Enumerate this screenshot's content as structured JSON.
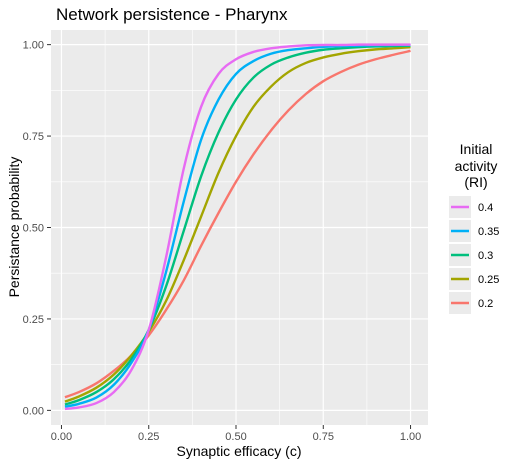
{
  "chart_data": {
    "type": "line",
    "title": "Network persistence - Pharynx",
    "xlabel": "Synaptic efficacy (c)",
    "ylabel": "Persistance probability",
    "xlim": [
      -0.03,
      1.05
    ],
    "ylim": [
      -0.04,
      1.04
    ],
    "x_ticks": [
      "0.00",
      "0.25",
      "0.50",
      "0.75",
      "1.00"
    ],
    "y_ticks": [
      "0.00",
      "0.25",
      "0.50",
      "0.75",
      "1.00"
    ],
    "grid": true,
    "legend": {
      "title_lines": [
        "Initial",
        "activity",
        "(RI)"
      ],
      "placement": "right"
    },
    "series": [
      {
        "name": "0.4",
        "color": "#E76BF3",
        "x": [
          0.01,
          0.05,
          0.1,
          0.15,
          0.2,
          0.25,
          0.3,
          0.35,
          0.4,
          0.45,
          0.5,
          0.55,
          0.6,
          0.65,
          0.7,
          0.75,
          0.8,
          0.85,
          0.9,
          0.95,
          1.0
        ],
        "y": [
          0.004,
          0.008,
          0.02,
          0.05,
          0.11,
          0.22,
          0.42,
          0.66,
          0.83,
          0.92,
          0.96,
          0.98,
          0.99,
          0.995,
          0.998,
          0.999,
          0.999,
          1.0,
          1.0,
          1.0,
          1.0
        ]
      },
      {
        "name": "0.35",
        "color": "#00B0F6",
        "x": [
          0.01,
          0.05,
          0.1,
          0.15,
          0.2,
          0.25,
          0.3,
          0.35,
          0.4,
          0.45,
          0.5,
          0.55,
          0.6,
          0.65,
          0.7,
          0.75,
          0.8,
          0.85,
          0.9,
          0.95,
          1.0
        ],
        "y": [
          0.01,
          0.018,
          0.035,
          0.07,
          0.13,
          0.22,
          0.38,
          0.57,
          0.74,
          0.85,
          0.92,
          0.955,
          0.975,
          0.985,
          0.99,
          0.994,
          0.996,
          0.997,
          0.998,
          0.999,
          0.999
        ]
      },
      {
        "name": "0.3",
        "color": "#00BF7D",
        "x": [
          0.01,
          0.05,
          0.1,
          0.15,
          0.2,
          0.25,
          0.3,
          0.35,
          0.4,
          0.45,
          0.5,
          0.55,
          0.6,
          0.65,
          0.7,
          0.75,
          0.8,
          0.85,
          0.9,
          0.95,
          1.0
        ],
        "y": [
          0.016,
          0.028,
          0.05,
          0.085,
          0.14,
          0.22,
          0.34,
          0.49,
          0.64,
          0.76,
          0.85,
          0.91,
          0.945,
          0.965,
          0.978,
          0.986,
          0.99,
          0.993,
          0.995,
          0.996,
          0.997
        ]
      },
      {
        "name": "0.25",
        "color": "#A3A500",
        "x": [
          0.01,
          0.05,
          0.1,
          0.15,
          0.2,
          0.25,
          0.3,
          0.35,
          0.4,
          0.45,
          0.5,
          0.55,
          0.6,
          0.65,
          0.7,
          0.75,
          0.8,
          0.85,
          0.9,
          0.95,
          1.0
        ],
        "y": [
          0.024,
          0.038,
          0.062,
          0.098,
          0.15,
          0.215,
          0.3,
          0.41,
          0.53,
          0.65,
          0.75,
          0.83,
          0.885,
          0.925,
          0.95,
          0.965,
          0.975,
          0.982,
          0.987,
          0.99,
          0.993
        ]
      },
      {
        "name": "0.2",
        "color": "#F8766D",
        "x": [
          0.01,
          0.05,
          0.1,
          0.15,
          0.2,
          0.25,
          0.3,
          0.35,
          0.4,
          0.45,
          0.5,
          0.55,
          0.6,
          0.65,
          0.7,
          0.75,
          0.8,
          0.85,
          0.9,
          0.95,
          1.0
        ],
        "y": [
          0.036,
          0.05,
          0.074,
          0.108,
          0.15,
          0.205,
          0.275,
          0.355,
          0.45,
          0.54,
          0.625,
          0.7,
          0.765,
          0.82,
          0.865,
          0.9,
          0.925,
          0.945,
          0.96,
          0.972,
          0.983
        ]
      }
    ]
  }
}
